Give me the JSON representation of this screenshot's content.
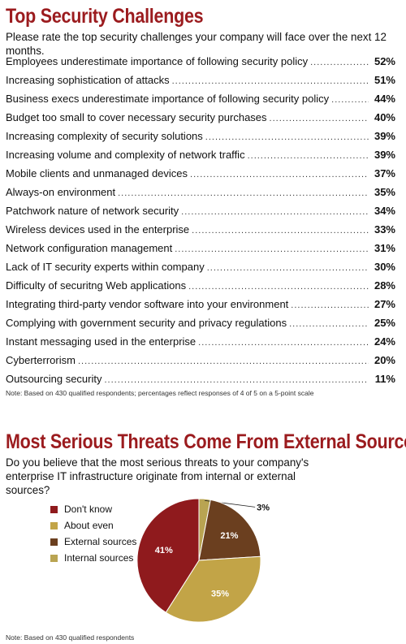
{
  "chart_data": [
    {
      "type": "bar",
      "title": "Top Security Challenges",
      "subtitle": "Please rate the top security challenges your company will face over the next 12 months.",
      "categories": [
        "Employees underestimate importance of following security policy",
        "Increasing sophistication of attacks",
        "Business execs underestimate importance of following security policy",
        "Budget too small to cover necessary security purchases",
        "Increasing complexity of security solutions",
        "Increasing volume and complexity of network traffic",
        "Mobile clients and unmanaged devices",
        "Always-on environment",
        "Patchwork nature of network security",
        "Wireless devices used in the enterprise",
        "Network configuration management",
        "Lack of IT security experts within company",
        "Difficulty of securitng Web applications",
        "Integrating third-party vendor software into your environment",
        "Complying with government security and privacy regulations",
        "Instant messaging used in the enterprise",
        "Cyberterrorism",
        "Outsourcing security"
      ],
      "values": [
        52,
        51,
        44,
        40,
        39,
        39,
        37,
        35,
        34,
        33,
        31,
        30,
        28,
        27,
        25,
        24,
        20,
        11
      ],
      "labels": [
        "52%",
        "51%",
        "44%",
        "40%",
        "39%",
        "39%",
        "37%",
        "35%",
        "34%",
        "33%",
        "31%",
        "30%",
        "28%",
        "27%",
        "25%",
        "24%",
        "20%",
        "11%"
      ],
      "note": "Note: Based on 430 qualified respondents; percentages reflect responses of 4 of 5 on a 5-point scale"
    },
    {
      "type": "pie",
      "title": "Most Serious Threats Come From External Sources",
      "subtitle": "Do you believe that the most serious threats to your company's enterprise IT infrastructure originate from internal or external sources?",
      "categories": [
        "Don't know",
        "About even",
        "External sources",
        "Internal sources"
      ],
      "values": [
        41,
        35,
        21,
        3
      ],
      "labels": [
        "41%",
        "35%",
        "21%",
        "3%"
      ],
      "colors": [
        "#8f1a1d",
        "#c2a447",
        "#6b3f1f",
        "#b9a452"
      ],
      "legend_position": "left",
      "note": "Note: Based on 430 qualified respondents"
    }
  ]
}
